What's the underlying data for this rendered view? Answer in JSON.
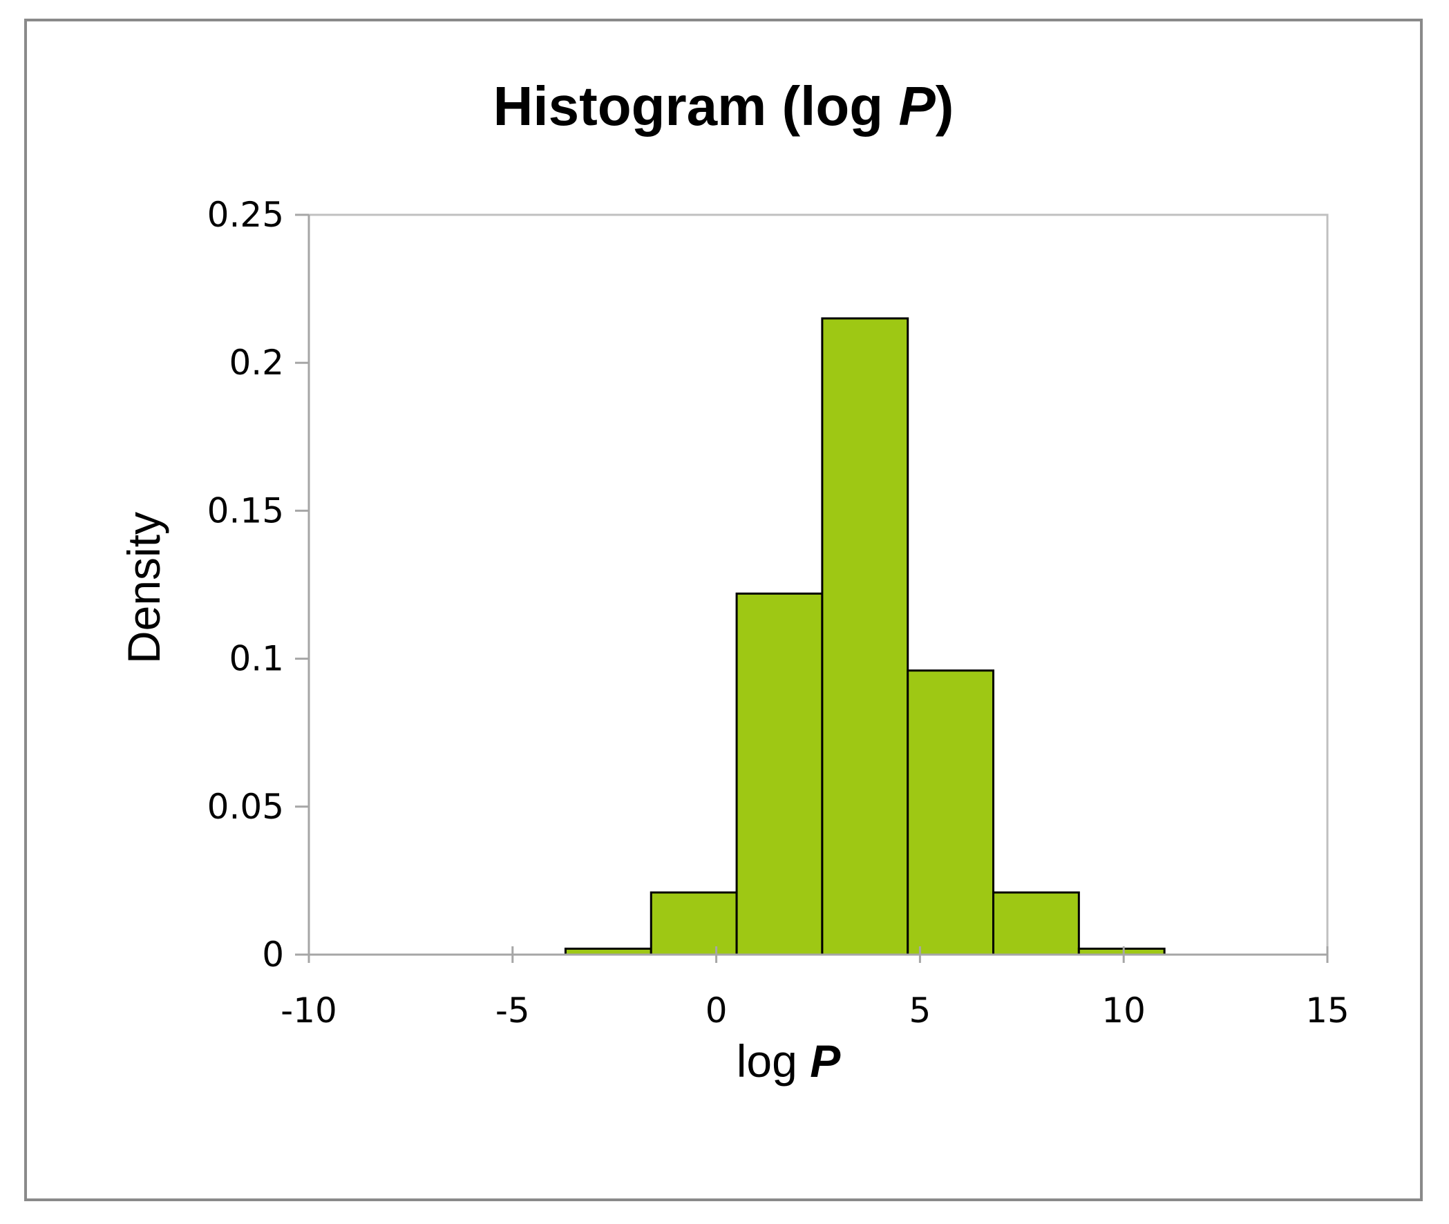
{
  "chart_data": {
    "type": "bar",
    "title": "Histogram  (log ",
    "title_italic": "P",
    "title_close": ")",
    "xlabel": "log ",
    "xlabel_bold_italic": "P",
    "ylabel": "Density",
    "xlim": [
      -10,
      15
    ],
    "ylim": [
      0,
      0.25
    ],
    "x_ticks": [
      -10,
      -5,
      0,
      5,
      10,
      15
    ],
    "x_tick_labels": [
      "-10",
      "-5",
      "0",
      "5",
      "10",
      "15"
    ],
    "y_ticks": [
      0,
      0.05,
      0.1,
      0.15,
      0.2,
      0.25
    ],
    "y_tick_labels": [
      "0",
      "0.05",
      "0.1",
      "0.15",
      "0.2",
      "0.25"
    ],
    "bin_edges": [
      -10,
      -7.9,
      -5.8,
      -3.7,
      -1.6,
      0.5,
      2.6,
      4.7,
      6.8,
      8.9,
      11
    ],
    "values": [
      0.0,
      0.0,
      0.0,
      0.002,
      0.021,
      0.122,
      0.215,
      0.096,
      0.021,
      0.002
    ],
    "grid": false,
    "legend": "none",
    "colors": {
      "bar_fill": "#9ec814",
      "bar_edge": "#000000",
      "axis": "#a6a6a6",
      "frame": "#8a8a8a"
    }
  }
}
